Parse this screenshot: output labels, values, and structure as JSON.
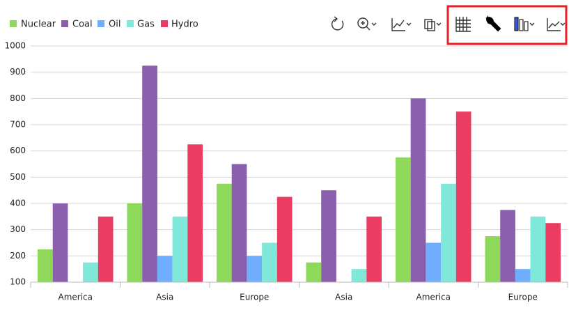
{
  "chart_data": {
    "type": "bar",
    "categories": [
      "America",
      "Asia",
      "Europe",
      "Asia",
      "America",
      "Europe"
    ],
    "series": [
      {
        "name": "Nuclear",
        "color": "#8ed95a",
        "values": [
          225,
          400,
          475,
          175,
          575,
          275
        ]
      },
      {
        "name": "Coal",
        "color": "#8b5fab",
        "values": [
          400,
          925,
          550,
          450,
          800,
          375
        ]
      },
      {
        "name": "Oil",
        "color": "#6eaefc",
        "values": [
          100,
          200,
          200,
          100,
          250,
          150
        ]
      },
      {
        "name": "Gas",
        "color": "#7fe8d9",
        "values": [
          175,
          350,
          250,
          150,
          475,
          350
        ]
      },
      {
        "name": "Hydro",
        "color": "#eb3d63",
        "values": [
          350,
          625,
          425,
          350,
          750,
          325
        ]
      }
    ],
    "ylim": [
      100,
      1000
    ],
    "yticks": [
      100,
      200,
      300,
      400,
      500,
      600,
      700,
      800,
      900,
      1000
    ],
    "grid": true
  }
}
